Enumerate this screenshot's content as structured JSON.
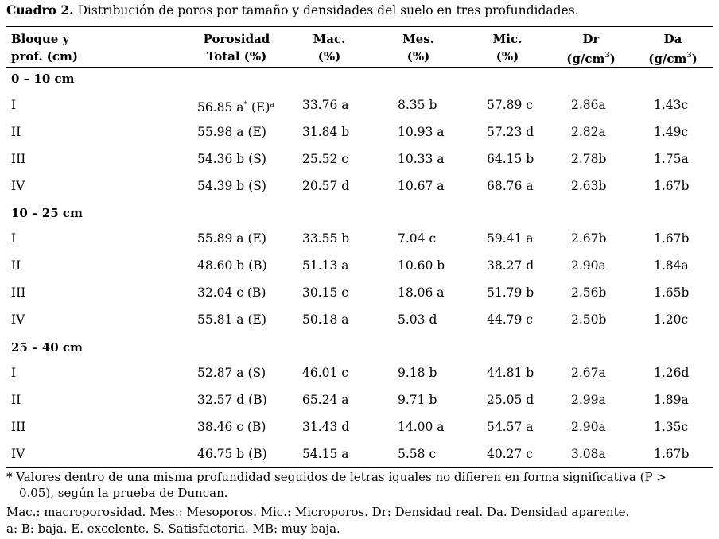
{
  "caption": {
    "label": "Cuadro 2.",
    "text": " Distribución de poros por tamaño y densidades del suelo en tres profundidades."
  },
  "header": {
    "col0": [
      "Bloque y",
      "prof. (cm)"
    ],
    "col1": [
      "Porosidad",
      "Total (%)"
    ],
    "col2": [
      "Mac.",
      "(%)"
    ],
    "col3": [
      "Mes.",
      "(%)"
    ],
    "col4": [
      "Mic.",
      "(%)"
    ],
    "col5": [
      "Dr",
      "(g/cm",
      "3",
      ")"
    ],
    "col6": [
      "Da",
      "(g/cm",
      "3",
      ")"
    ]
  },
  "sections": [
    {
      "title": "0 – 10 cm",
      "rows": [
        {
          "bloque": "I",
          "porosidad": "56.85 a",
          "marker1": "*",
          "porosidad_class": " (E)",
          "marker2": "a",
          "mac": "33.76 a",
          "mes": "8.35 b",
          "mic": "57.89 c",
          "dr": "2.86a",
          "da": "1.43c"
        },
        {
          "bloque": "II",
          "porosidad": "55.98 a (E)",
          "mac": "31.84 b",
          "mes": "10.93 a",
          "mic": "57.23 d",
          "dr": "2.82a",
          "da": "1.49c"
        },
        {
          "bloque": "III",
          "porosidad": "54.36 b (S)",
          "mac": "25.52 c",
          "mes": "10.33 a",
          "mic": "64.15 b",
          "dr": "2.78b",
          "da": "1.75a"
        },
        {
          "bloque": "IV",
          "porosidad": "54.39 b (S)",
          "mac": "20.57 d",
          "mes": "10.67 a",
          "mic": "68.76 a",
          "dr": "2.63b",
          "da": "1.67b"
        }
      ]
    },
    {
      "title": "10 – 25 cm",
      "rows": [
        {
          "bloque": "I",
          "porosidad": "55.89 a (E)",
          "mac": "33.55 b",
          "mes": "7.04 c",
          "mic": "59.41 a",
          "dr": "2.67b",
          "da": "1.67b"
        },
        {
          "bloque": "II",
          "porosidad": "48.60 b (B)",
          "mac": "51.13 a",
          "mes": "10.60 b",
          "mic": "38.27 d",
          "dr": "2.90a",
          "da": "1.84a"
        },
        {
          "bloque": "III",
          "porosidad": "32.04 c (B)",
          "mac": "30.15 c",
          "mes": "18.06 a",
          "mic": "51.79 b",
          "dr": "2.56b",
          "da": "1.65b"
        },
        {
          "bloque": "IV",
          "porosidad": "55.81 a (E)",
          "mac": "50.18 a",
          "mes": "5.03 d",
          "mic": "44.79 c",
          "dr": "2.50b",
          "da": "1.20c"
        }
      ]
    },
    {
      "title": "25 – 40 cm",
      "rows": [
        {
          "bloque": "I",
          "porosidad": "52.87 a (S)",
          "mac": "46.01 c",
          "mes": "9.18 b",
          "mic": "44.81 b",
          "dr": "2.67a",
          "da": "1.26d"
        },
        {
          "bloque": "II",
          "porosidad": "32.57 d (B)",
          "mac": "65.24 a",
          "mes": "9.71 b",
          "mic": "25.05 d",
          "dr": "2.99a",
          "da": "1.89a"
        },
        {
          "bloque": "III",
          "porosidad": "38.46 c (B)",
          "mac": "31.43 d",
          "mes": "14.00 a",
          "mic": "54.57 a",
          "dr": "2.90a",
          "da": "1.35c"
        },
        {
          "bloque": "IV",
          "porosidad": "46.75 b (B)",
          "mac": "54.15 a",
          "mes": "5.58 c",
          "mic": "40.27 c",
          "dr": "3.08a",
          "da": "1.67b"
        }
      ]
    }
  ],
  "notes": {
    "n1_line1": "* Valores dentro de una misma profundidad seguidos de letras iguales no difieren en forma significativa (P >",
    "n1_line2": "0.05), según la prueba de Duncan.",
    "n2": "Mac.: macroporosidad. Mes.: Mesoporos. Mic.: Microporos. Dr: Densidad real. Da. Densidad aparente.",
    "n3": "a: B: baja. E. excelente. S. Satisfactoria. MB: muy baja."
  }
}
